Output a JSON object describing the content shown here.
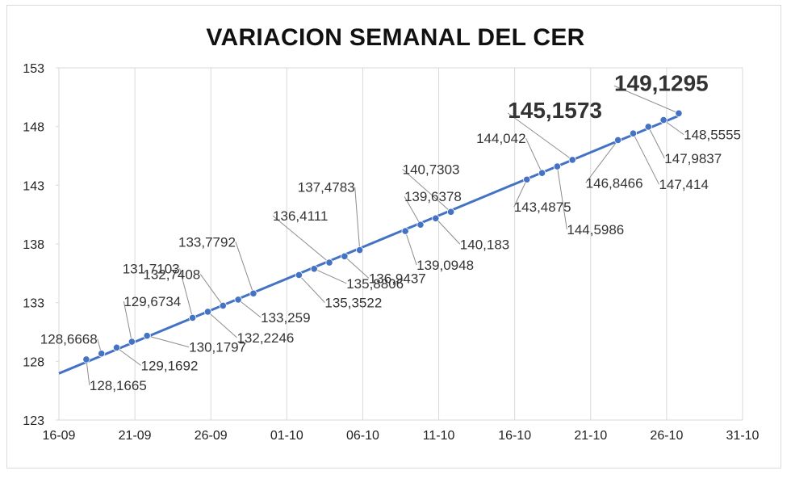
{
  "chart_data": {
    "type": "scatter",
    "title": "VARIACION SEMANAL DEL CER",
    "xlabel": "",
    "ylabel": "",
    "ylim": [
      123,
      153
    ],
    "yticks": [
      "123",
      "128",
      "133",
      "138",
      "143",
      "148",
      "153"
    ],
    "xticks": [
      "16-09",
      "21-09",
      "26-09",
      "01-10",
      "06-10",
      "11-10",
      "16-10",
      "21-10",
      "26-10",
      "31-10"
    ],
    "x_domain_days": [
      0,
      45
    ],
    "grid": "vertical",
    "trendline": true,
    "colors": {
      "series": "#4472c4",
      "grid": "#d9d9d9",
      "leader": "#8c8c8c"
    },
    "points": [
      {
        "day": 1.8,
        "y": 128.1665,
        "label": "128,1665"
      },
      {
        "day": 2.8,
        "y": 128.6668,
        "label": "128,6668"
      },
      {
        "day": 3.8,
        "y": 129.1692,
        "label": "129,1692"
      },
      {
        "day": 4.8,
        "y": 129.6734,
        "label": "129,6734"
      },
      {
        "day": 5.8,
        "y": 130.1797,
        "label": "130,1797"
      },
      {
        "day": 8.8,
        "y": 131.7103,
        "label": "131,7103"
      },
      {
        "day": 9.8,
        "y": 132.2246,
        "label": "132,2246"
      },
      {
        "day": 10.8,
        "y": 132.7408,
        "label": "132,7408"
      },
      {
        "day": 11.8,
        "y": 133.259,
        "label": "133,259"
      },
      {
        "day": 12.8,
        "y": 133.7792,
        "label": "133,7792"
      },
      {
        "day": 15.8,
        "y": 135.3522,
        "label": "135,3522"
      },
      {
        "day": 16.8,
        "y": 135.8806,
        "label": "135,8806"
      },
      {
        "day": 17.8,
        "y": 136.4111,
        "label": "136,4111"
      },
      {
        "day": 18.8,
        "y": 136.9437,
        "label": "136,9437"
      },
      {
        "day": 19.8,
        "y": 137.4783,
        "label": "137,4783"
      },
      {
        "day": 22.8,
        "y": 139.0948,
        "label": "139,0948"
      },
      {
        "day": 23.8,
        "y": 139.6378,
        "label": "139,6378"
      },
      {
        "day": 24.8,
        "y": 140.183,
        "label": "140,183"
      },
      {
        "day": 25.8,
        "y": 140.7303,
        "label": "140,7303"
      },
      {
        "day": 30.8,
        "y": 143.4875,
        "label": "143,4875"
      },
      {
        "day": 31.8,
        "y": 144.042,
        "label": "144,042"
      },
      {
        "day": 32.8,
        "y": 144.5986,
        "label": "144,5986"
      },
      {
        "day": 33.8,
        "y": 145.1573,
        "label": "145,1573",
        "big": true
      },
      {
        "day": 36.8,
        "y": 146.8466,
        "label": "146,8466"
      },
      {
        "day": 37.8,
        "y": 147.414,
        "label": "147,414"
      },
      {
        "day": 38.8,
        "y": 147.9837,
        "label": "147,9837"
      },
      {
        "day": 39.8,
        "y": 148.5555,
        "label": "148,5555"
      },
      {
        "day": 40.8,
        "y": 149.1295,
        "label": "149,1295",
        "big": true
      }
    ]
  }
}
